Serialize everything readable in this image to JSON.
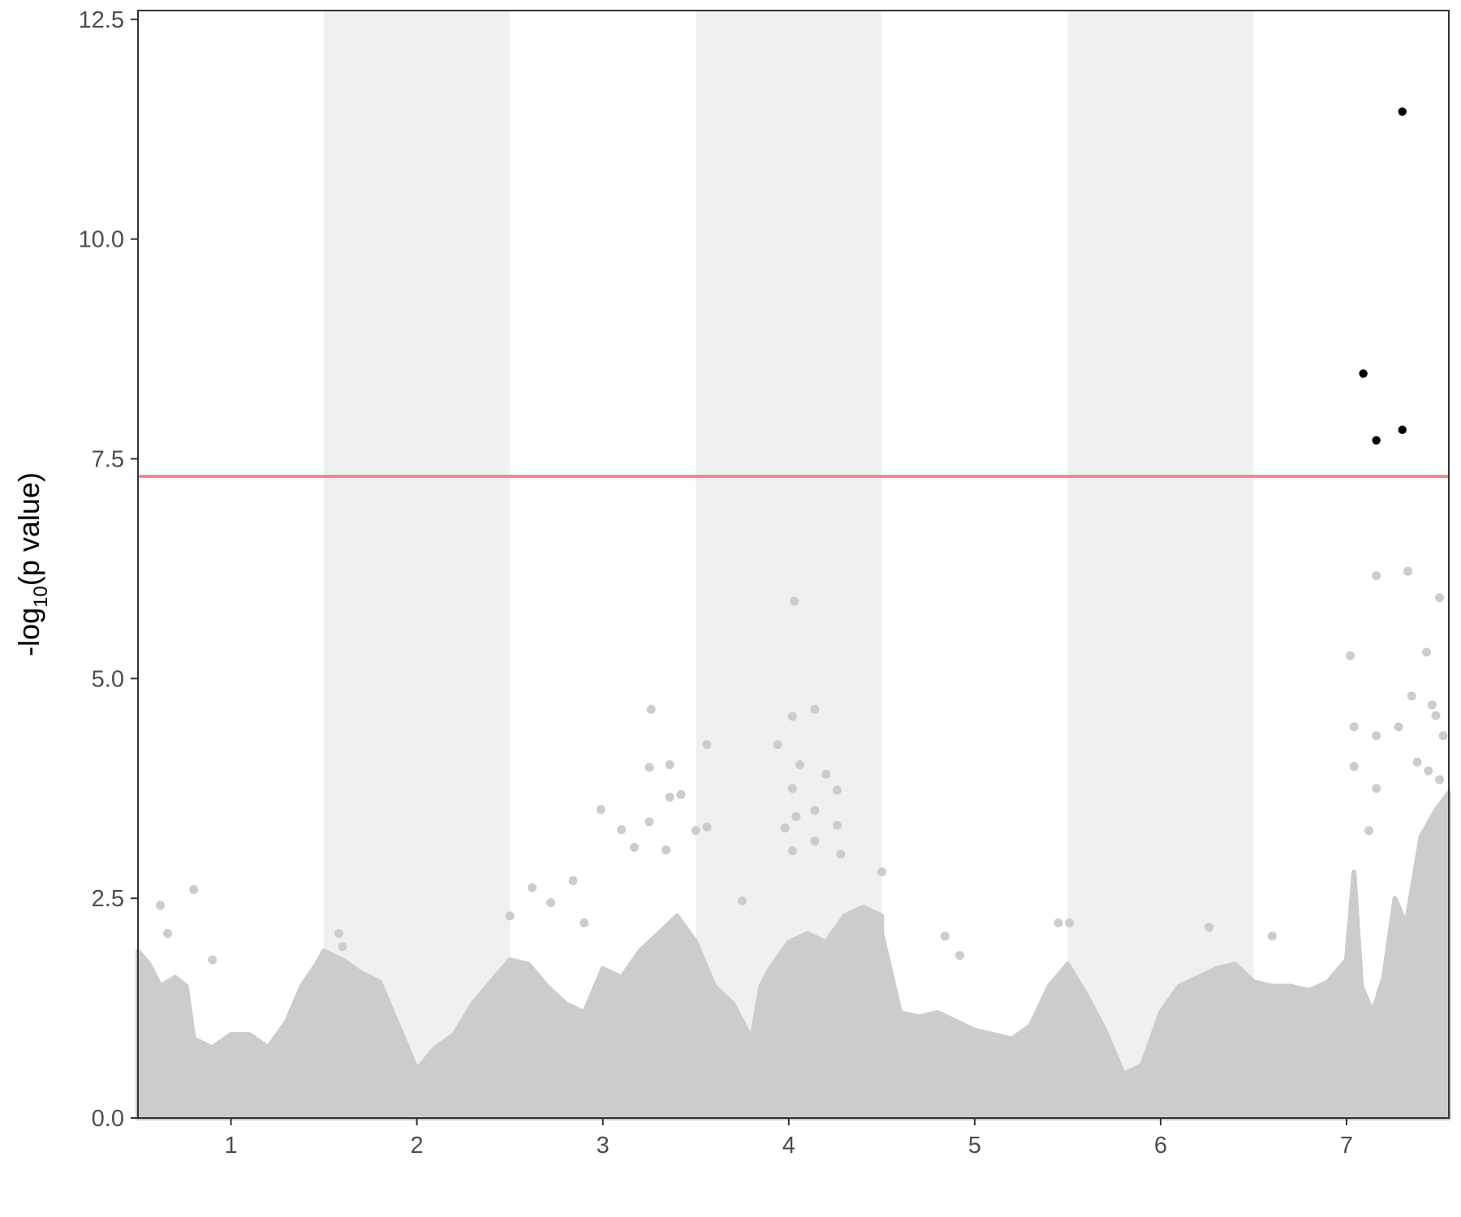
{
  "chart_data": {
    "type": "scatter",
    "subtype": "manhattan",
    "title": "",
    "xlabel": "",
    "ylabel": {
      "prefix": "-log",
      "subscript": "10",
      "suffix": "(p value)"
    },
    "ylim": [
      0,
      12.6
    ],
    "y_ticks": [
      {
        "value": 0.0,
        "label": "0.0"
      },
      {
        "value": 2.5,
        "label": "2.5"
      },
      {
        "value": 5.0,
        "label": "5.0"
      },
      {
        "value": 7.5,
        "label": "7.5"
      },
      {
        "value": 10.0,
        "label": "10.0"
      },
      {
        "value": 12.5,
        "label": "12.5"
      }
    ],
    "x_ticks": [
      {
        "value": 1,
        "label": "1"
      },
      {
        "value": 2,
        "label": "2"
      },
      {
        "value": 3,
        "label": "3"
      },
      {
        "value": 4,
        "label": "4"
      },
      {
        "value": 5,
        "label": "5"
      },
      {
        "value": 6,
        "label": "6"
      },
      {
        "value": 7,
        "label": "7"
      }
    ],
    "chromosome_band_colors": [
      "#ffffff",
      "#f0f0f0"
    ],
    "significance_line": {
      "y": 7.3,
      "color": "#f08080"
    },
    "grid": false,
    "legend": "none",
    "series": [
      {
        "color": "#cccccc",
        "role": "non-significant",
        "points": [
          {
            "x": 0.62,
            "y": 2.42
          },
          {
            "x": 0.8,
            "y": 2.6
          },
          {
            "x": 0.66,
            "y": 2.1
          },
          {
            "x": 0.9,
            "y": 1.8
          },
          {
            "x": 1.6,
            "y": 1.95
          },
          {
            "x": 1.58,
            "y": 2.1
          },
          {
            "x": 2.5,
            "y": 2.3
          },
          {
            "x": 2.62,
            "y": 2.62
          },
          {
            "x": 2.72,
            "y": 2.45
          },
          {
            "x": 2.84,
            "y": 2.7
          },
          {
            "x": 2.9,
            "y": 2.22
          },
          {
            "x": 2.99,
            "y": 3.51
          },
          {
            "x": 3.1,
            "y": 3.28
          },
          {
            "x": 3.17,
            "y": 3.08
          },
          {
            "x": 3.25,
            "y": 3.99
          },
          {
            "x": 3.26,
            "y": 4.65
          },
          {
            "x": 3.36,
            "y": 4.02
          },
          {
            "x": 3.36,
            "y": 3.65
          },
          {
            "x": 3.42,
            "y": 3.68
          },
          {
            "x": 3.5,
            "y": 3.27
          },
          {
            "x": 3.56,
            "y": 4.25
          },
          {
            "x": 3.56,
            "y": 3.31
          },
          {
            "x": 3.34,
            "y": 3.05
          },
          {
            "x": 3.25,
            "y": 3.37
          },
          {
            "x": 3.75,
            "y": 2.47
          },
          {
            "x": 3.94,
            "y": 4.25
          },
          {
            "x": 4.02,
            "y": 4.57
          },
          {
            "x": 4.03,
            "y": 5.88
          },
          {
            "x": 4.02,
            "y": 3.75
          },
          {
            "x": 4.06,
            "y": 4.02
          },
          {
            "x": 4.14,
            "y": 4.65
          },
          {
            "x": 4.14,
            "y": 3.5
          },
          {
            "x": 4.2,
            "y": 3.91
          },
          {
            "x": 4.26,
            "y": 3.73
          },
          {
            "x": 4.26,
            "y": 3.33
          },
          {
            "x": 4.28,
            "y": 3.0
          },
          {
            "x": 4.04,
            "y": 3.43
          },
          {
            "x": 3.98,
            "y": 3.3
          },
          {
            "x": 4.14,
            "y": 3.15
          },
          {
            "x": 4.02,
            "y": 3.04
          },
          {
            "x": 4.5,
            "y": 2.8
          },
          {
            "x": 4.84,
            "y": 2.07
          },
          {
            "x": 4.92,
            "y": 1.85
          },
          {
            "x": 5.45,
            "y": 2.22
          },
          {
            "x": 5.51,
            "y": 2.22
          },
          {
            "x": 6.26,
            "y": 2.17
          },
          {
            "x": 6.6,
            "y": 2.07
          },
          {
            "x": 7.02,
            "y": 5.26
          },
          {
            "x": 7.04,
            "y": 4.45
          },
          {
            "x": 7.04,
            "y": 4.0
          },
          {
            "x": 7.16,
            "y": 6.17
          },
          {
            "x": 7.16,
            "y": 4.35
          },
          {
            "x": 7.16,
            "y": 3.75
          },
          {
            "x": 7.12,
            "y": 3.27
          },
          {
            "x": 7.28,
            "y": 4.45
          },
          {
            "x": 7.33,
            "y": 6.22
          },
          {
            "x": 7.35,
            "y": 4.8
          },
          {
            "x": 7.43,
            "y": 5.3
          },
          {
            "x": 7.5,
            "y": 5.92
          },
          {
            "x": 7.46,
            "y": 4.7
          },
          {
            "x": 7.48,
            "y": 4.58
          },
          {
            "x": 7.52,
            "y": 4.35
          },
          {
            "x": 7.38,
            "y": 4.05
          },
          {
            "x": 7.44,
            "y": 3.95
          },
          {
            "x": 7.5,
            "y": 3.85
          }
        ]
      },
      {
        "color": "#000000",
        "role": "genome-wide significant",
        "points": [
          {
            "x": 7.3,
            "y": 11.45
          },
          {
            "x": 7.09,
            "y": 8.47
          },
          {
            "x": 7.3,
            "y": 7.83
          },
          {
            "x": 7.16,
            "y": 7.71
          }
        ]
      }
    ],
    "chromosome_profiles": [
      {
        "chr": 1,
        "start": 0.5,
        "end": 1.5,
        "background": [
          [
            0.5,
            1.9
          ],
          [
            0.56,
            1.75
          ],
          [
            0.62,
            1.5
          ],
          [
            0.7,
            1.6
          ],
          [
            0.76,
            1.5
          ],
          [
            0.8,
            0.9
          ],
          [
            0.9,
            0.8
          ],
          [
            1.0,
            0.95
          ],
          [
            1.1,
            0.95
          ],
          [
            1.2,
            0.8
          ],
          [
            1.3,
            1.1
          ],
          [
            1.38,
            1.5
          ],
          [
            1.46,
            1.75
          ],
          [
            1.5,
            1.9
          ]
        ]
      },
      {
        "chr": 2,
        "start": 1.5,
        "end": 2.5,
        "background": [
          [
            1.5,
            1.9
          ],
          [
            1.6,
            1.8
          ],
          [
            1.7,
            1.65
          ],
          [
            1.8,
            1.55
          ],
          [
            1.9,
            1.05
          ],
          [
            2.0,
            0.55
          ],
          [
            2.1,
            0.8
          ],
          [
            2.2,
            0.95
          ],
          [
            2.3,
            1.3
          ],
          [
            2.4,
            1.55
          ],
          [
            2.5,
            1.8
          ]
        ]
      },
      {
        "chr": 3,
        "start": 2.5,
        "end": 3.5,
        "background": [
          [
            2.5,
            1.8
          ],
          [
            2.6,
            1.75
          ],
          [
            2.7,
            1.5
          ],
          [
            2.8,
            1.3
          ],
          [
            2.9,
            1.2
          ],
          [
            3.0,
            1.7
          ],
          [
            3.1,
            1.6
          ],
          [
            3.2,
            1.9
          ],
          [
            3.3,
            2.1
          ],
          [
            3.4,
            2.3
          ],
          [
            3.5,
            2.0
          ]
        ]
      },
      {
        "chr": 4,
        "start": 3.5,
        "end": 4.5,
        "background": [
          [
            3.5,
            2.0
          ],
          [
            3.6,
            1.5
          ],
          [
            3.7,
            1.3
          ],
          [
            3.8,
            0.9
          ],
          [
            3.85,
            1.5
          ],
          [
            3.9,
            1.7
          ],
          [
            4.0,
            2.0
          ],
          [
            4.1,
            2.1
          ],
          [
            4.2,
            2.0
          ],
          [
            4.3,
            2.3
          ],
          [
            4.4,
            2.4
          ],
          [
            4.5,
            2.3
          ]
        ]
      },
      {
        "chr": 5,
        "start": 4.5,
        "end": 5.5,
        "background": [
          [
            4.5,
            2.1
          ],
          [
            4.6,
            1.2
          ],
          [
            4.7,
            1.15
          ],
          [
            4.8,
            1.2
          ],
          [
            4.9,
            1.1
          ],
          [
            5.0,
            1.0
          ],
          [
            5.1,
            0.95
          ],
          [
            5.2,
            0.9
          ],
          [
            5.3,
            1.05
          ],
          [
            5.4,
            1.5
          ],
          [
            5.5,
            1.75
          ]
        ]
      },
      {
        "chr": 6,
        "start": 5.5,
        "end": 6.5,
        "background": [
          [
            5.5,
            1.75
          ],
          [
            5.6,
            1.4
          ],
          [
            5.7,
            1.0
          ],
          [
            5.8,
            0.5
          ],
          [
            5.9,
            0.6
          ],
          [
            6.0,
            1.2
          ],
          [
            6.1,
            1.5
          ],
          [
            6.2,
            1.6
          ],
          [
            6.3,
            1.7
          ],
          [
            6.4,
            1.75
          ],
          [
            6.5,
            1.55
          ]
        ]
      },
      {
        "chr": 7,
        "start": 6.5,
        "end": 7.55,
        "background": [
          [
            6.5,
            1.55
          ],
          [
            6.6,
            1.5
          ],
          [
            6.7,
            1.5
          ],
          [
            6.8,
            1.45
          ],
          [
            6.9,
            1.55
          ],
          [
            7.0,
            1.8
          ],
          [
            7.04,
            2.8
          ],
          [
            7.08,
            1.5
          ],
          [
            7.14,
            1.2
          ],
          [
            7.2,
            1.6
          ],
          [
            7.26,
            2.5
          ],
          [
            7.32,
            2.2
          ],
          [
            7.4,
            3.2
          ],
          [
            7.48,
            3.5
          ],
          [
            7.55,
            3.7
          ]
        ]
      }
    ]
  }
}
